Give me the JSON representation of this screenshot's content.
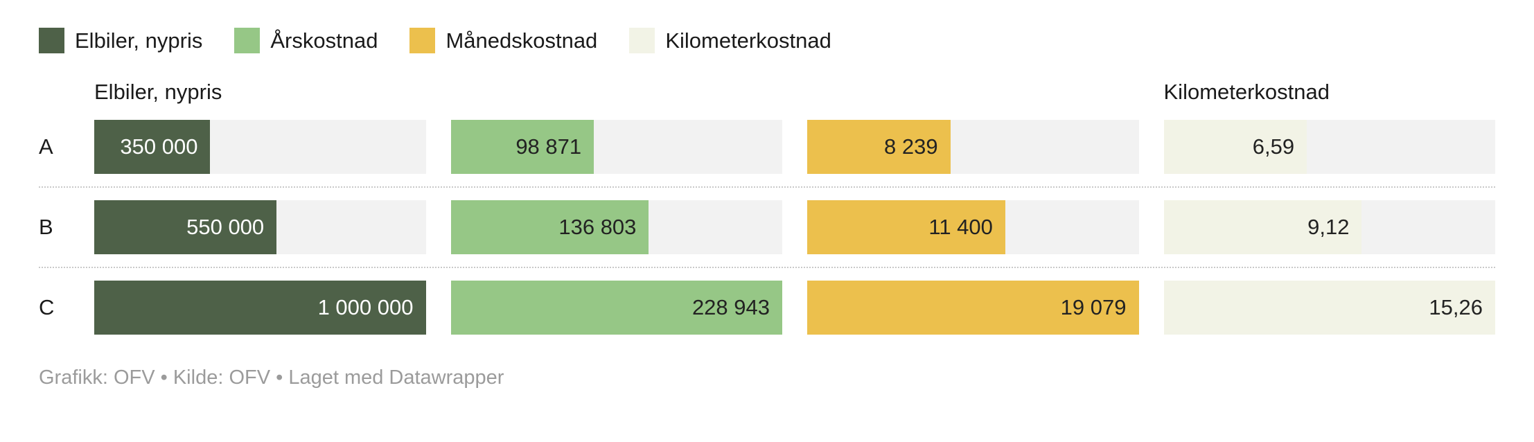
{
  "legend": {
    "items": [
      {
        "label": "Elbiler, nypris",
        "color": "#4e6148"
      },
      {
        "label": "Årskostnad",
        "color": "#96c786"
      },
      {
        "label": "Månedskostnad",
        "color": "#ecc04d"
      },
      {
        "label": "Kilometerkostnad",
        "color": "#f2f3e6"
      }
    ]
  },
  "column_headers": {
    "first": "Elbiler, nypris",
    "last": "Kilometerkostnad"
  },
  "footer": {
    "text": "Grafikk: OFV • Kilde: OFV • Laget med Datawrapper"
  },
  "chart_data": {
    "type": "bar",
    "orientation": "horizontal",
    "categories": [
      "A",
      "B",
      "C"
    ],
    "series": [
      {
        "name": "Elbiler, nypris",
        "color": "#4e6148",
        "label_color": "#ffffff",
        "values": [
          350000,
          550000,
          1000000
        ],
        "labels": [
          "350 000",
          "550 000",
          "1 000 000"
        ]
      },
      {
        "name": "Årskostnad",
        "color": "#96c786",
        "label_color": "#222222",
        "values": [
          98871,
          136803,
          228943
        ],
        "labels": [
          "98 871",
          "136 803",
          "228 943"
        ]
      },
      {
        "name": "Månedskostnad",
        "color": "#ecc04d",
        "label_color": "#222222",
        "values": [
          8239,
          11400,
          19079
        ],
        "labels": [
          "8 239",
          "11 400",
          "19 079"
        ]
      },
      {
        "name": "Kilometerkostnad",
        "color": "#f2f3e6",
        "label_color": "#222222",
        "values": [
          6.59,
          9.12,
          15.26
        ],
        "labels": [
          "6,59",
          "9,12",
          "15,26"
        ]
      }
    ],
    "track_background": "#f2f2f2",
    "grid": false,
    "legend_position": "top"
  }
}
